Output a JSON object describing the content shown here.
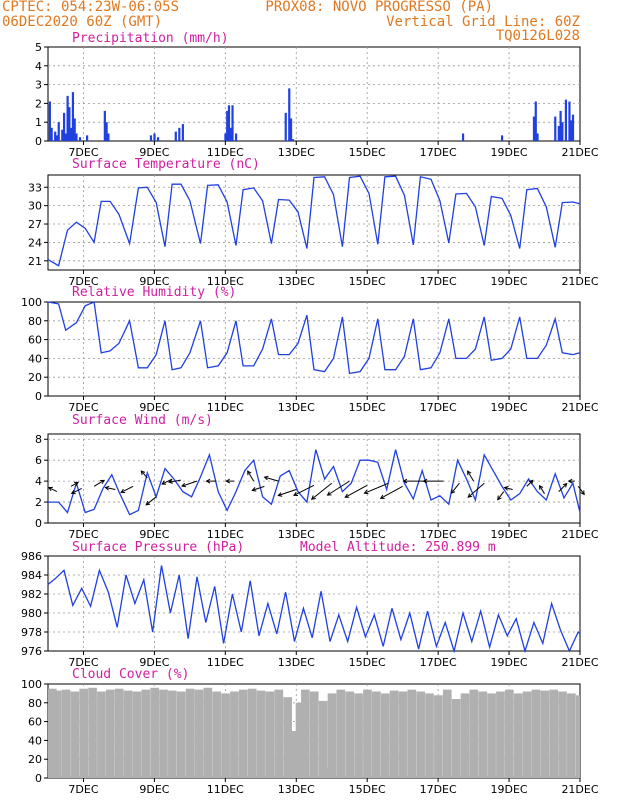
{
  "header": {
    "line1_left": "CPTEC:   054:23W-06:05S",
    "line1_right": "PROX08: NOVO PROGRESSO (PA)",
    "line2_left": "06DEC2020 60Z (GMT)",
    "line2_right": "Vertical Grid Line: 60Z",
    "line3_right": "TQ0126L028"
  },
  "colors": {
    "header": "#e07820",
    "panel_title": "#d020a0",
    "series": "#2040e0",
    "cloud": "#b0b0b0",
    "grid": "#999999"
  },
  "x_axis": {
    "range_days": [
      6.0,
      21.0
    ],
    "ticks": [
      {
        "day": 7,
        "label": "7DEC"
      },
      {
        "day": 9,
        "label": "9DEC"
      },
      {
        "day": 11,
        "label": "11DEC"
      },
      {
        "day": 13,
        "label": "13DEC"
      },
      {
        "day": 15,
        "label": "15DEC"
      },
      {
        "day": 17,
        "label": "17DEC"
      },
      {
        "day": 19,
        "label": "19DEC"
      },
      {
        "day": 21,
        "label": "21DEC"
      }
    ]
  },
  "chart_data": [
    {
      "id": "precip",
      "type": "bar",
      "title": "Precipitation (mm/h)",
      "ylim": [
        0,
        5
      ],
      "yticks": [
        0,
        1,
        2,
        3,
        4,
        5
      ],
      "x": [
        6.05,
        6.1,
        6.2,
        6.25,
        6.3,
        6.4,
        6.45,
        6.5,
        6.55,
        6.6,
        6.65,
        6.7,
        6.75,
        6.8,
        6.9,
        7.1,
        7.6,
        7.65,
        7.7,
        8.9,
        9.0,
        9.1,
        9.6,
        9.7,
        9.8,
        11.0,
        11.05,
        11.1,
        11.15,
        11.2,
        11.3,
        12.7,
        12.8,
        12.85,
        12.9,
        17.7,
        18.8,
        19.7,
        19.75,
        19.8,
        20.3,
        20.4,
        20.45,
        20.5,
        20.6,
        20.7,
        20.75,
        20.8
      ],
      "values": [
        2.1,
        0.7,
        0.5,
        0.3,
        1.0,
        0.6,
        1.5,
        0.4,
        2.4,
        1.8,
        0.7,
        2.6,
        1.2,
        0.4,
        0.2,
        0.3,
        1.6,
        1.0,
        0.4,
        0.3,
        0.4,
        0.2,
        0.5,
        0.7,
        0.9,
        0.4,
        1.6,
        1.9,
        0.7,
        1.9,
        0.4,
        1.5,
        2.8,
        1.2,
        0.1,
        0.4,
        0.3,
        1.3,
        2.1,
        0.4,
        1.3,
        0.8,
        1.6,
        1.0,
        2.2,
        2.1,
        1.1,
        1.4
      ]
    },
    {
      "id": "temp",
      "type": "line",
      "title": "Surface Temperature (nC)",
      "ylim": [
        19.5,
        35
      ],
      "yticks": [
        21,
        24,
        27,
        30,
        33
      ],
      "x": [
        6.0,
        6.3,
        6.55,
        6.8,
        7.05,
        7.3,
        7.5,
        7.75,
        8.0,
        8.3,
        8.55,
        8.8,
        9.05,
        9.3,
        9.5,
        9.75,
        10.0,
        10.3,
        10.5,
        10.8,
        11.05,
        11.3,
        11.5,
        11.8,
        12.05,
        12.3,
        12.5,
        12.8,
        13.05,
        13.3,
        13.5,
        13.8,
        14.05,
        14.3,
        14.5,
        14.8,
        15.05,
        15.3,
        15.5,
        15.8,
        16.05,
        16.3,
        16.5,
        16.8,
        17.05,
        17.3,
        17.5,
        17.8,
        18.05,
        18.3,
        18.5,
        18.8,
        19.05,
        19.3,
        19.5,
        19.8,
        20.05,
        20.3,
        20.5,
        20.8,
        21.0
      ],
      "values": [
        21.2,
        20.2,
        26.0,
        27.3,
        26.3,
        24.0,
        30.7,
        30.7,
        28.6,
        23.8,
        32.9,
        33.0,
        30.5,
        23.3,
        33.5,
        33.5,
        30.8,
        23.8,
        33.3,
        33.4,
        30.6,
        23.5,
        32.6,
        32.9,
        30.8,
        23.8,
        31.0,
        30.9,
        29.0,
        23.0,
        34.6,
        34.7,
        31.8,
        23.3,
        34.6,
        34.8,
        32.0,
        23.7,
        34.7,
        34.8,
        31.7,
        23.6,
        34.7,
        34.3,
        30.8,
        23.9,
        31.9,
        32.0,
        29.8,
        23.5,
        31.5,
        31.2,
        28.4,
        23.0,
        32.6,
        32.8,
        29.8,
        23.2,
        30.5,
        30.6,
        30.3
      ]
    },
    {
      "id": "rh",
      "type": "line",
      "title": "Relative Humidity (%)",
      "ylim": [
        0,
        100
      ],
      "yticks": [
        0,
        20,
        40,
        60,
        80,
        100
      ],
      "x": [
        6.0,
        6.3,
        6.5,
        6.8,
        7.05,
        7.3,
        7.5,
        7.75,
        8.0,
        8.3,
        8.55,
        8.8,
        9.05,
        9.3,
        9.5,
        9.75,
        10.0,
        10.3,
        10.5,
        10.8,
        11.05,
        11.3,
        11.5,
        11.8,
        12.05,
        12.3,
        12.5,
        12.8,
        13.05,
        13.3,
        13.5,
        13.8,
        14.05,
        14.3,
        14.5,
        14.8,
        15.05,
        15.3,
        15.5,
        15.8,
        16.05,
        16.3,
        16.5,
        16.8,
        17.05,
        17.3,
        17.5,
        17.8,
        18.05,
        18.3,
        18.5,
        18.8,
        19.05,
        19.3,
        19.5,
        19.8,
        20.05,
        20.3,
        20.5,
        20.8,
        21.0
      ],
      "values": [
        100,
        98,
        70,
        78,
        96,
        100,
        46,
        48,
        56,
        80,
        30,
        30,
        44,
        80,
        28,
        30,
        46,
        80,
        30,
        32,
        46,
        80,
        32,
        32,
        50,
        82,
        44,
        44,
        56,
        86,
        28,
        26,
        40,
        84,
        24,
        26,
        40,
        82,
        28,
        28,
        42,
        82,
        28,
        30,
        46,
        82,
        40,
        40,
        50,
        84,
        38,
        40,
        50,
        84,
        40,
        40,
        54,
        82,
        46,
        44,
        46
      ]
    },
    {
      "id": "wind",
      "type": "line",
      "title": "Surface Wind (m/s)",
      "ylim": [
        0,
        8.5
      ],
      "yticks": [
        0,
        2,
        4,
        6,
        8
      ],
      "x": [
        6.0,
        6.3,
        6.55,
        6.8,
        7.05,
        7.3,
        7.55,
        7.8,
        8.0,
        8.3,
        8.55,
        8.8,
        9.05,
        9.3,
        9.55,
        9.8,
        10.05,
        10.3,
        10.55,
        10.8,
        11.05,
        11.3,
        11.55,
        11.8,
        12.05,
        12.3,
        12.55,
        12.8,
        13.05,
        13.3,
        13.55,
        13.8,
        14.05,
        14.3,
        14.55,
        14.8,
        15.05,
        15.3,
        15.55,
        15.8,
        16.05,
        16.3,
        16.55,
        16.8,
        17.05,
        17.3,
        17.55,
        17.8,
        18.05,
        18.3,
        18.55,
        18.8,
        19.05,
        19.3,
        19.55,
        19.8,
        20.05,
        20.3,
        20.55,
        20.8,
        21.0
      ],
      "values": [
        2.0,
        2.0,
        1.0,
        3.8,
        1.0,
        1.3,
        3.3,
        4.6,
        3.0,
        0.8,
        1.2,
        4.8,
        2.5,
        5.2,
        4.2,
        3.0,
        2.5,
        4.4,
        6.5,
        3.0,
        1.2,
        3.0,
        5.0,
        6.0,
        2.5,
        1.8,
        4.5,
        5.0,
        3.0,
        2.0,
        7.0,
        4.2,
        5.4,
        3.0,
        3.8,
        6.0,
        6.0,
        5.8,
        3.2,
        7.0,
        3.8,
        2.3,
        5.0,
        2.2,
        2.6,
        1.8,
        6.0,
        4.2,
        2.2,
        6.5,
        5.0,
        3.5,
        2.2,
        2.8,
        4.2,
        3.0,
        2.2,
        4.7,
        2.4,
        3.8,
        1.0
      ],
      "barbs": [
        {
          "x": 6.25,
          "y": 3.0,
          "dx": -8,
          "dy": -4
        },
        {
          "x": 6.65,
          "y": 3.5,
          "dx": 7,
          "dy": -4
        },
        {
          "x": 6.95,
          "y": 3.3,
          "dx": -10,
          "dy": 5
        },
        {
          "x": 7.3,
          "y": 3.5,
          "dx": 10,
          "dy": -6
        },
        {
          "x": 7.9,
          "y": 3.2,
          "dx": -10,
          "dy": -2
        },
        {
          "x": 8.4,
          "y": 3.5,
          "dx": -12,
          "dy": 6
        },
        {
          "x": 8.8,
          "y": 4.3,
          "dx": -6,
          "dy": -7
        },
        {
          "x": 9.05,
          "y": 2.5,
          "dx": -10,
          "dy": 8
        },
        {
          "x": 9.5,
          "y": 4.2,
          "dx": -10,
          "dy": 5
        },
        {
          "x": 9.75,
          "y": 4.1,
          "dx": -12,
          "dy": 2
        },
        {
          "x": 10.2,
          "y": 4.0,
          "dx": -15,
          "dy": 5
        },
        {
          "x": 10.75,
          "y": 4.0,
          "dx": -10,
          "dy": 0
        },
        {
          "x": 11.25,
          "y": 4.0,
          "dx": -8,
          "dy": 0
        },
        {
          "x": 11.8,
          "y": 4.0,
          "dx": -6,
          "dy": -10
        },
        {
          "x": 12.1,
          "y": 3.5,
          "dx": -12,
          "dy": 4
        },
        {
          "x": 12.5,
          "y": 4.0,
          "dx": -14,
          "dy": -4
        },
        {
          "x": 13.0,
          "y": 3.2,
          "dx": -18,
          "dy": 6
        },
        {
          "x": 13.5,
          "y": 3.6,
          "dx": -20,
          "dy": 10
        },
        {
          "x": 14.0,
          "y": 3.8,
          "dx": -20,
          "dy": 16
        },
        {
          "x": 14.5,
          "y": 4.0,
          "dx": -22,
          "dy": 14
        },
        {
          "x": 15.0,
          "y": 3.6,
          "dx": -22,
          "dy": 12
        },
        {
          "x": 15.6,
          "y": 3.8,
          "dx": -24,
          "dy": 10
        },
        {
          "x": 16.0,
          "y": 3.5,
          "dx": -22,
          "dy": 12
        },
        {
          "x": 16.7,
          "y": 4.0,
          "dx": -24,
          "dy": 0
        },
        {
          "x": 17.15,
          "y": 4.0,
          "dx": -20,
          "dy": 0
        },
        {
          "x": 17.6,
          "y": 3.8,
          "dx": -8,
          "dy": 10
        },
        {
          "x": 18.0,
          "y": 4.0,
          "dx": -6,
          "dy": -10
        },
        {
          "x": 18.3,
          "y": 3.8,
          "dx": -16,
          "dy": 14
        },
        {
          "x": 18.85,
          "y": 3.0,
          "dx": -6,
          "dy": 8
        },
        {
          "x": 19.1,
          "y": 3.2,
          "dx": -8,
          "dy": -2
        },
        {
          "x": 19.5,
          "y": 3.5,
          "dx": 6,
          "dy": -6
        },
        {
          "x": 20.0,
          "y": 2.8,
          "dx": -5,
          "dy": -8
        },
        {
          "x": 20.4,
          "y": 3.0,
          "dx": 8,
          "dy": -8
        },
        {
          "x": 20.85,
          "y": 4.0,
          "dx": -6,
          "dy": 0
        },
        {
          "x": 20.95,
          "y": 3.5,
          "dx": 6,
          "dy": 8
        }
      ]
    },
    {
      "id": "pressure",
      "type": "line",
      "title": "Surface Pressure (hPa)",
      "annotation": "Model Altitude: 250.899  m",
      "ylim": [
        976,
        986
      ],
      "yticks": [
        976,
        978,
        980,
        982,
        984,
        986
      ],
      "x": [
        6.0,
        6.2,
        6.45,
        6.7,
        6.95,
        7.2,
        7.45,
        7.7,
        7.95,
        8.2,
        8.45,
        8.7,
        8.95,
        9.2,
        9.45,
        9.7,
        9.95,
        10.2,
        10.45,
        10.7,
        10.95,
        11.2,
        11.45,
        11.7,
        11.95,
        12.2,
        12.45,
        12.7,
        12.95,
        13.2,
        13.45,
        13.7,
        13.95,
        14.2,
        14.45,
        14.7,
        14.95,
        15.2,
        15.45,
        15.7,
        15.95,
        16.2,
        16.45,
        16.7,
        16.95,
        17.2,
        17.45,
        17.7,
        17.95,
        18.2,
        18.45,
        18.7,
        18.95,
        19.2,
        19.45,
        19.7,
        19.95,
        20.2,
        20.45,
        20.7,
        20.95,
        21.0
      ],
      "values": [
        983.0,
        983.6,
        984.5,
        980.8,
        982.6,
        980.7,
        984.5,
        982.2,
        978.5,
        984.0,
        981.0,
        983.5,
        978.0,
        985.0,
        980.0,
        984.0,
        977.3,
        983.8,
        979.0,
        982.8,
        976.8,
        982.0,
        978.0,
        983.4,
        977.6,
        981.0,
        977.8,
        982.2,
        977.0,
        980.5,
        977.4,
        982.3,
        977.0,
        979.8,
        977.0,
        980.6,
        977.5,
        979.8,
        976.5,
        980.5,
        977.2,
        980.0,
        976.2,
        980.2,
        976.5,
        979.0,
        976.0,
        980.0,
        977.0,
        980.2,
        976.4,
        979.8,
        977.6,
        979.4,
        976.0,
        979.0,
        976.8,
        981.0,
        978.2,
        976.0,
        978.0,
        977.8
      ]
    },
    {
      "id": "cloud",
      "type": "bar",
      "title": "Cloud Cover (%)",
      "ylim": [
        0,
        100
      ],
      "yticks": [
        0,
        20,
        40,
        60,
        80,
        100
      ],
      "x": [
        6.0,
        6.25,
        6.5,
        6.75,
        7.0,
        7.25,
        7.5,
        7.75,
        8.0,
        8.25,
        8.5,
        8.75,
        9.0,
        9.25,
        9.5,
        9.75,
        10.0,
        10.25,
        10.5,
        10.75,
        11.0,
        11.2,
        11.25,
        11.5,
        11.75,
        12.0,
        12.25,
        12.5,
        12.75,
        12.9,
        13.0,
        13.1,
        13.25,
        13.5,
        13.75,
        13.85,
        14.0,
        14.25,
        14.5,
        14.75,
        15.0,
        15.25,
        15.5,
        15.75,
        16.0,
        16.25,
        16.5,
        16.75,
        17.0,
        17.25,
        17.5,
        17.75,
        18.0,
        18.25,
        18.5,
        18.75,
        19.0,
        19.25,
        19.5,
        19.75,
        20.0,
        20.25,
        20.5,
        20.75,
        21.0
      ],
      "values": [
        95,
        93,
        94,
        92,
        95,
        96,
        92,
        94,
        95,
        93,
        92,
        94,
        96,
        94,
        93,
        92,
        95,
        94,
        96,
        92,
        90,
        0,
        92,
        94,
        95,
        93,
        92,
        94,
        86,
        50,
        30,
        80,
        94,
        92,
        82,
        10,
        90,
        94,
        92,
        90,
        94,
        92,
        90,
        93,
        92,
        94,
        92,
        90,
        88,
        94,
        84,
        90,
        94,
        92,
        90,
        92,
        94,
        90,
        92,
        94,
        93,
        94,
        92,
        90,
        88
      ]
    }
  ]
}
